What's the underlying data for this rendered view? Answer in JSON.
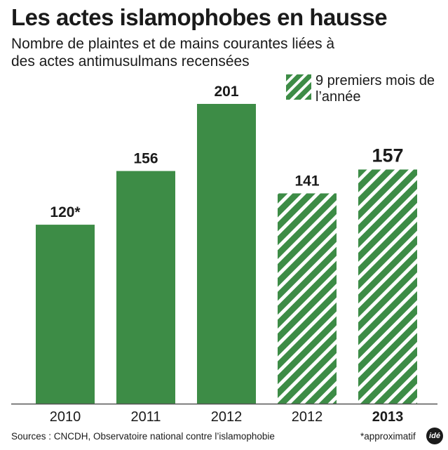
{
  "header": {
    "title": "Les actes islamophobes en hausse",
    "subtitle": "Nombre de plaintes et de mains courantes liées à des actes antimusulmans recensées"
  },
  "legend": {
    "label": "9 premiers mois de l’année"
  },
  "colors": {
    "bar": "#3d8c46",
    "axis": "#555555",
    "text": "#1a1a1a"
  },
  "chart_data": {
    "type": "bar",
    "categories": [
      "2010",
      "2011",
      "2012",
      "2012",
      "2013"
    ],
    "values": [
      120,
      156,
      201,
      141,
      157
    ],
    "value_labels": [
      "120*",
      "156",
      "201",
      "141",
      "157"
    ],
    "bar_style": [
      "solid",
      "solid",
      "solid",
      "hatched",
      "hatched"
    ],
    "emphasis": [
      false,
      false,
      false,
      false,
      true
    ],
    "title": "Les actes islamophobes en hausse",
    "subtitle": "Nombre de plaintes et de mains courantes liées à des actes antimusulmans recensées",
    "legend": [
      "9 premiers mois de l’année"
    ],
    "ylim": [
      0,
      201
    ],
    "grid": false,
    "legend_position": "top-right"
  },
  "footer": {
    "source": "Sources : CNCDH, Observatoire national contre l’islamophobie",
    "note": "*approximatif",
    "logo": "idé"
  }
}
